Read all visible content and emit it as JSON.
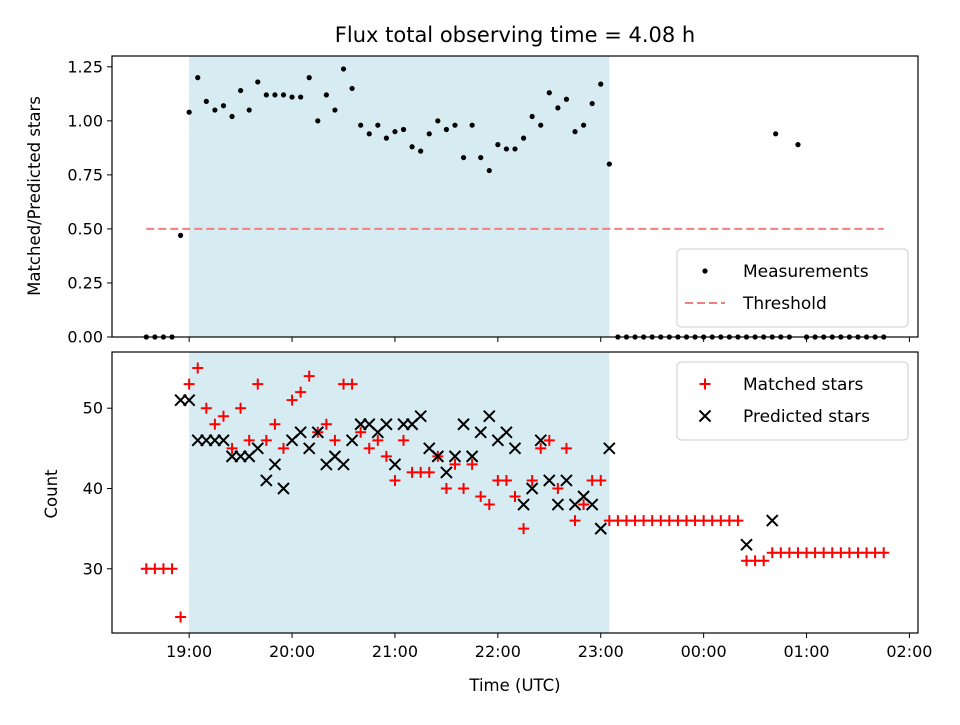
{
  "chart_data": [
    {
      "type": "scatter",
      "title": "Flux total observing time = 4.08 h",
      "ylabel": "Matched/Predicted stars",
      "xlabel": "",
      "ylim": [
        0.0,
        1.3
      ],
      "xlim": [
        "18:15",
        "02:05"
      ],
      "yticks": [
        "0.00",
        "0.25",
        "0.50",
        "0.75",
        "1.00",
        "1.25"
      ],
      "shaded_span": [
        "19:00",
        "23:05"
      ],
      "legend_position": "lower-right",
      "series": [
        {
          "name": "Measurements",
          "marker": "dot",
          "color": "#000000",
          "points": [
            [
              "18:35",
              0.0
            ],
            [
              "18:40",
              0.0
            ],
            [
              "18:45",
              0.0
            ],
            [
              "18:50",
              0.0
            ],
            [
              "18:55",
              0.47
            ],
            [
              "19:00",
              1.04
            ],
            [
              "19:05",
              1.2
            ],
            [
              "19:10",
              1.09
            ],
            [
              "19:15",
              1.05
            ],
            [
              "19:20",
              1.07
            ],
            [
              "19:25",
              1.02
            ],
            [
              "19:30",
              1.14
            ],
            [
              "19:35",
              1.05
            ],
            [
              "19:40",
              1.18
            ],
            [
              "19:45",
              1.12
            ],
            [
              "19:50",
              1.12
            ],
            [
              "19:55",
              1.12
            ],
            [
              "20:00",
              1.11
            ],
            [
              "20:05",
              1.11
            ],
            [
              "20:10",
              1.2
            ],
            [
              "20:15",
              1.0
            ],
            [
              "20:20",
              1.12
            ],
            [
              "20:25",
              1.05
            ],
            [
              "20:30",
              1.24
            ],
            [
              "20:35",
              1.15
            ],
            [
              "20:40",
              0.98
            ],
            [
              "20:45",
              0.94
            ],
            [
              "20:50",
              0.98
            ],
            [
              "20:55",
              0.92
            ],
            [
              "21:00",
              0.95
            ],
            [
              "21:05",
              0.96
            ],
            [
              "21:10",
              0.88
            ],
            [
              "21:15",
              0.86
            ],
            [
              "21:20",
              0.94
            ],
            [
              "21:25",
              1.0
            ],
            [
              "21:30",
              0.96
            ],
            [
              "21:35",
              0.98
            ],
            [
              "21:40",
              0.83
            ],
            [
              "21:45",
              0.98
            ],
            [
              "21:50",
              0.83
            ],
            [
              "21:55",
              0.77
            ],
            [
              "22:00",
              0.89
            ],
            [
              "22:05",
              0.87
            ],
            [
              "22:10",
              0.87
            ],
            [
              "22:15",
              0.92
            ],
            [
              "22:20",
              1.02
            ],
            [
              "22:25",
              0.98
            ],
            [
              "22:30",
              1.13
            ],
            [
              "22:35",
              1.06
            ],
            [
              "22:40",
              1.1
            ],
            [
              "22:45",
              0.95
            ],
            [
              "22:50",
              0.98
            ],
            [
              "22:55",
              1.08
            ],
            [
              "23:00",
              1.17
            ],
            [
              "23:05",
              0.8
            ],
            [
              "23:10",
              0.0
            ],
            [
              "23:15",
              0.0
            ],
            [
              "23:20",
              0.0
            ],
            [
              "23:25",
              0.0
            ],
            [
              "23:30",
              0.0
            ],
            [
              "23:35",
              0.0
            ],
            [
              "23:40",
              0.0
            ],
            [
              "23:45",
              0.0
            ],
            [
              "23:50",
              0.0
            ],
            [
              "23:55",
              0.0
            ],
            [
              "00:00",
              0.0
            ],
            [
              "00:05",
              0.0
            ],
            [
              "00:10",
              0.0
            ],
            [
              "00:15",
              0.0
            ],
            [
              "00:20",
              0.0
            ],
            [
              "00:25",
              0.0
            ],
            [
              "00:30",
              0.0
            ],
            [
              "00:35",
              0.0
            ],
            [
              "00:40",
              0.0
            ],
            [
              "00:45",
              0.0
            ],
            [
              "00:50",
              0.0
            ],
            [
              "00:42",
              0.94
            ],
            [
              "00:55",
              0.89
            ],
            [
              "01:00",
              0.0
            ],
            [
              "01:05",
              0.0
            ],
            [
              "01:10",
              0.0
            ],
            [
              "01:15",
              0.0
            ],
            [
              "01:20",
              0.0
            ],
            [
              "01:25",
              0.0
            ],
            [
              "01:30",
              0.0
            ],
            [
              "01:35",
              0.0
            ],
            [
              "01:40",
              0.0
            ],
            [
              "01:45",
              0.0
            ]
          ]
        },
        {
          "name": "Threshold",
          "marker": "dashed-line",
          "color": "#f08080",
          "points": [
            [
              "18:35",
              0.5
            ],
            [
              "01:45",
              0.5
            ]
          ]
        }
      ]
    },
    {
      "type": "scatter",
      "title": "",
      "ylabel": "Count",
      "xlabel": "Time (UTC)",
      "ylim": [
        22,
        57
      ],
      "xlim": [
        "18:15",
        "02:05"
      ],
      "yticks": [
        "30",
        "40",
        "50"
      ],
      "xticks": [
        "19:00",
        "20:00",
        "21:00",
        "22:00",
        "23:00",
        "00:00",
        "01:00",
        "02:00"
      ],
      "shaded_span": [
        "19:00",
        "23:05"
      ],
      "legend_position": "upper-right",
      "series": [
        {
          "name": "Matched stars",
          "marker": "plus",
          "color": "#ff0000",
          "points": [
            [
              "18:35",
              30
            ],
            [
              "18:40",
              30
            ],
            [
              "18:45",
              30
            ],
            [
              "18:50",
              30
            ],
            [
              "18:55",
              24
            ],
            [
              "19:00",
              53
            ],
            [
              "19:05",
              55
            ],
            [
              "19:10",
              50
            ],
            [
              "19:15",
              48
            ],
            [
              "19:20",
              49
            ],
            [
              "19:25",
              45
            ],
            [
              "19:30",
              50
            ],
            [
              "19:35",
              46
            ],
            [
              "19:40",
              53
            ],
            [
              "19:45",
              46
            ],
            [
              "19:50",
              48
            ],
            [
              "19:55",
              45
            ],
            [
              "20:00",
              51
            ],
            [
              "20:05",
              52
            ],
            [
              "20:10",
              54
            ],
            [
              "20:15",
              47
            ],
            [
              "20:20",
              48
            ],
            [
              "20:25",
              46
            ],
            [
              "20:30",
              53
            ],
            [
              "20:35",
              53
            ],
            [
              "20:40",
              47
            ],
            [
              "20:45",
              45
            ],
            [
              "20:50",
              46
            ],
            [
              "20:55",
              44
            ],
            [
              "21:00",
              41
            ],
            [
              "21:05",
              46
            ],
            [
              "21:10",
              42
            ],
            [
              "21:15",
              42
            ],
            [
              "21:20",
              42
            ],
            [
              "21:25",
              44
            ],
            [
              "21:30",
              40
            ],
            [
              "21:35",
              43
            ],
            [
              "21:40",
              40
            ],
            [
              "21:45",
              43
            ],
            [
              "21:50",
              39
            ],
            [
              "21:55",
              38
            ],
            [
              "22:00",
              41
            ],
            [
              "22:05",
              41
            ],
            [
              "22:10",
              39
            ],
            [
              "22:15",
              35
            ],
            [
              "22:20",
              41
            ],
            [
              "22:25",
              45
            ],
            [
              "22:30",
              46
            ],
            [
              "22:35",
              40
            ],
            [
              "22:40",
              45
            ],
            [
              "22:45",
              36
            ],
            [
              "22:50",
              38
            ],
            [
              "22:55",
              41
            ],
            [
              "23:00",
              41
            ],
            [
              "23:05",
              36
            ],
            [
              "23:10",
              36
            ],
            [
              "23:15",
              36
            ],
            [
              "23:20",
              36
            ],
            [
              "23:25",
              36
            ],
            [
              "23:30",
              36
            ],
            [
              "23:35",
              36
            ],
            [
              "23:40",
              36
            ],
            [
              "23:45",
              36
            ],
            [
              "23:50",
              36
            ],
            [
              "23:55",
              36
            ],
            [
              "00:00",
              36
            ],
            [
              "00:05",
              36
            ],
            [
              "00:10",
              36
            ],
            [
              "00:15",
              36
            ],
            [
              "00:20",
              36
            ],
            [
              "00:25",
              31
            ],
            [
              "00:30",
              31
            ],
            [
              "00:35",
              31
            ],
            [
              "00:40",
              32
            ],
            [
              "00:45",
              32
            ],
            [
              "00:50",
              32
            ],
            [
              "00:55",
              32
            ],
            [
              "01:00",
              32
            ],
            [
              "01:05",
              32
            ],
            [
              "01:10",
              32
            ],
            [
              "01:15",
              32
            ],
            [
              "01:20",
              32
            ],
            [
              "01:25",
              32
            ],
            [
              "01:30",
              32
            ],
            [
              "01:35",
              32
            ],
            [
              "01:40",
              32
            ],
            [
              "01:45",
              32
            ]
          ]
        },
        {
          "name": "Predicted stars",
          "marker": "x",
          "color": "#000000",
          "points": [
            [
              "18:55",
              51
            ],
            [
              "19:00",
              51
            ],
            [
              "19:05",
              46
            ],
            [
              "19:10",
              46
            ],
            [
              "19:15",
              46
            ],
            [
              "19:20",
              46
            ],
            [
              "19:25",
              44
            ],
            [
              "19:30",
              44
            ],
            [
              "19:35",
              44
            ],
            [
              "19:40",
              45
            ],
            [
              "19:45",
              41
            ],
            [
              "19:50",
              43
            ],
            [
              "19:55",
              40
            ],
            [
              "20:00",
              46
            ],
            [
              "20:05",
              47
            ],
            [
              "20:10",
              45
            ],
            [
              "20:15",
              47
            ],
            [
              "20:20",
              43
            ],
            [
              "20:25",
              44
            ],
            [
              "20:30",
              43
            ],
            [
              "20:35",
              46
            ],
            [
              "20:40",
              48
            ],
            [
              "20:45",
              48
            ],
            [
              "20:50",
              47
            ],
            [
              "20:55",
              48
            ],
            [
              "21:00",
              43
            ],
            [
              "21:05",
              48
            ],
            [
              "21:10",
              48
            ],
            [
              "21:15",
              49
            ],
            [
              "21:20",
              45
            ],
            [
              "21:25",
              44
            ],
            [
              "21:30",
              42
            ],
            [
              "21:35",
              44
            ],
            [
              "21:40",
              48
            ],
            [
              "21:45",
              44
            ],
            [
              "21:50",
              47
            ],
            [
              "21:55",
              49
            ],
            [
              "22:00",
              46
            ],
            [
              "22:05",
              47
            ],
            [
              "22:10",
              45
            ],
            [
              "22:15",
              38
            ],
            [
              "22:20",
              40
            ],
            [
              "22:25",
              46
            ],
            [
              "22:30",
              41
            ],
            [
              "22:35",
              38
            ],
            [
              "22:40",
              41
            ],
            [
              "22:45",
              38
            ],
            [
              "22:50",
              39
            ],
            [
              "22:55",
              38
            ],
            [
              "23:00",
              35
            ],
            [
              "23:05",
              45
            ],
            [
              "00:25",
              33
            ],
            [
              "00:40",
              36
            ]
          ]
        }
      ]
    }
  ]
}
